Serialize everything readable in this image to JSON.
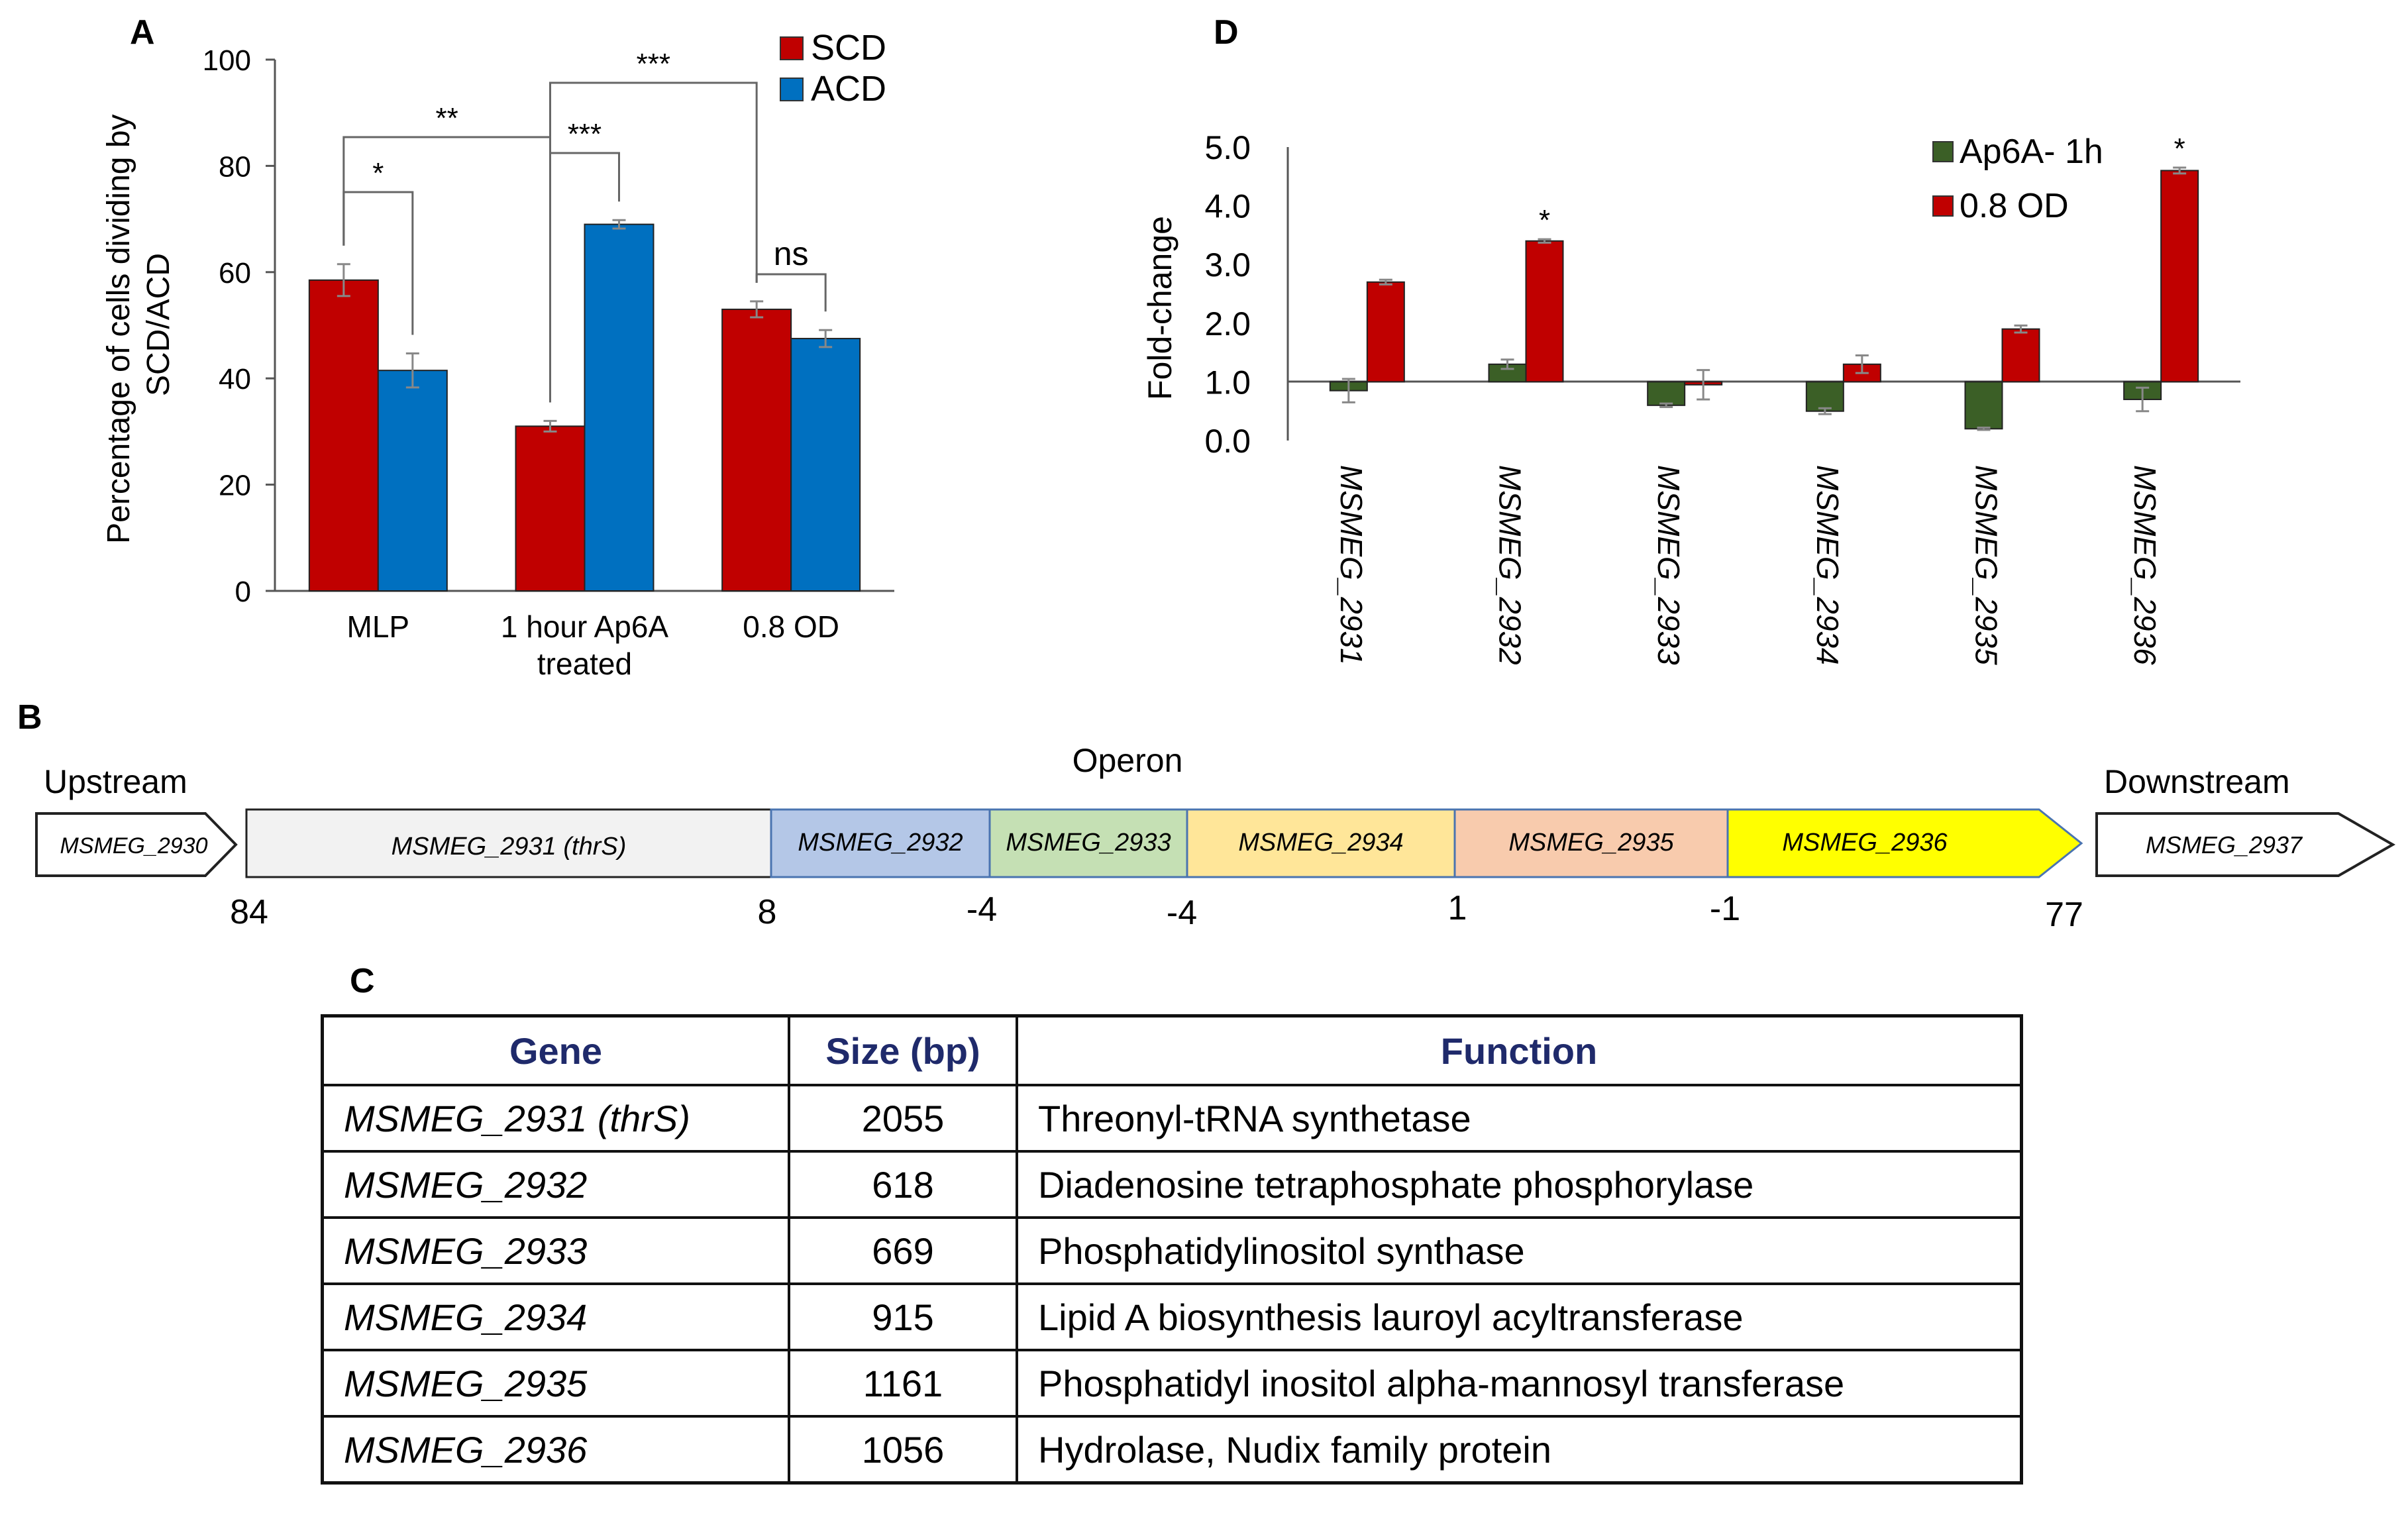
{
  "panels": {
    "a": "A",
    "b": "B",
    "c": "C",
    "d": "D"
  },
  "chart_data": [
    {
      "panel": "A",
      "type": "bar",
      "title": "",
      "xlabel": "",
      "ylabel": "Percentage of cells dividing by SCD/ACD",
      "ylabel_lines": [
        "Percentage of cells dividing by",
        "SCD/ACD"
      ],
      "ylim": [
        0,
        100
      ],
      "yticks": [
        0,
        20,
        40,
        60,
        80,
        100
      ],
      "categories": [
        "MLP",
        "1 hour Ap6A treated",
        "0.8 OD"
      ],
      "category_lines": [
        [
          "MLP"
        ],
        [
          "1 hour Ap6A",
          "treated"
        ],
        [
          "0.8 OD"
        ]
      ],
      "series": [
        {
          "name": "SCD",
          "color": "#c00000",
          "values": [
            58.5,
            31,
            53
          ],
          "errors": [
            3,
            1,
            1.5
          ]
        },
        {
          "name": "ACD",
          "color": "#0070c0",
          "values": [
            41.5,
            69,
            47.5
          ],
          "errors": [
            3.2,
            0.8,
            1.6
          ]
        }
      ],
      "legend_position": "top-right",
      "annotations": [
        {
          "label": "*",
          "between": [
            "MLP SCD",
            "MLP ACD"
          ]
        },
        {
          "label": "**",
          "between": [
            "MLP SCD",
            "1 hour Ap6A treated SCD"
          ]
        },
        {
          "label": "***",
          "between": [
            "1 hour Ap6A treated SCD",
            "1 hour Ap6A treated ACD"
          ]
        },
        {
          "label": "***",
          "between": [
            "1 hour Ap6A treated SCD",
            "0.8 OD SCD"
          ]
        },
        {
          "label": "ns",
          "between": [
            "0.8 OD SCD",
            "0.8 OD ACD"
          ]
        }
      ]
    },
    {
      "panel": "D",
      "type": "bar",
      "title": "",
      "xlabel": "",
      "ylabel": "Fold-change",
      "ylim": [
        0,
        5
      ],
      "baseline": 1,
      "yticks": [
        "0.0",
        "1.0",
        "2.0",
        "3.0",
        "4.0",
        "5.0"
      ],
      "categories": [
        "MSMEG_2931",
        "MSMEG_2932",
        "MSMEG_2933",
        "MSMEG_2934",
        "MSMEG_2935",
        "MSMEG_2936"
      ],
      "series": [
        {
          "name": "Ap6A- 1h",
          "color": "#3b5f26",
          "values": [
            0.85,
            1.3,
            0.6,
            0.5,
            0.2,
            0.7
          ],
          "errors": [
            0.2,
            0.08,
            0.03,
            0.05,
            0.02,
            0.2
          ]
        },
        {
          "name": "0.8 OD",
          "color": "#c00000",
          "values": [
            2.7,
            3.4,
            0.95,
            1.3,
            1.9,
            4.6
          ],
          "errors": [
            0.04,
            0.03,
            0.25,
            0.15,
            0.06,
            0.05
          ]
        }
      ],
      "legend_position": "top-right",
      "annotations": [
        {
          "label": "*",
          "category": "MSMEG_2932",
          "series": "0.8 OD"
        },
        {
          "label": "*",
          "category": "MSMEG_2936",
          "series": "0.8 OD"
        }
      ]
    }
  ],
  "operon_map": {
    "upstream_label": "Upstream",
    "operon_label": "Operon",
    "downstream_label": "Downstream",
    "upstream_gene": "MSMEG_2930",
    "downstream_gene": "MSMEG_2937",
    "genes": [
      {
        "label": "MSMEG_2931 (thrS)",
        "color": "#f2f2f2"
      },
      {
        "label": "MSMEG_2932",
        "color": "#b4c7e7"
      },
      {
        "label": "MSMEG_2933",
        "color": "#c5e0b4"
      },
      {
        "label": "MSMEG_2934",
        "color": "#ffe699"
      },
      {
        "label": "MSMEG_2935",
        "color": "#f8cbad"
      },
      {
        "label": "MSMEG_2936",
        "color": "#ffff00"
      }
    ],
    "intergenic_distances": [
      "84",
      "8",
      "-4",
      "-4",
      "1",
      "-1",
      "77"
    ]
  },
  "table": {
    "headers": {
      "gene": "Gene",
      "size": "Size (bp)",
      "function": "Function"
    },
    "rows": [
      {
        "gene": "MSMEG_2931 (thrS)",
        "size": "2055",
        "function": "Threonyl-tRNA synthetase"
      },
      {
        "gene": "MSMEG_2932",
        "size": "618",
        "function": "Diadenosine tetraphosphate phosphorylase"
      },
      {
        "gene": "MSMEG_2933",
        "size": "669",
        "function": "Phosphatidylinositol synthase"
      },
      {
        "gene": "MSMEG_2934",
        "size": "915",
        "function": "Lipid A biosynthesis lauroyl acyltransferase"
      },
      {
        "gene": "MSMEG_2935",
        "size": "1161",
        "function": "Phosphatidyl inositol alpha-mannosyl transferase"
      },
      {
        "gene": "MSMEG_2936",
        "size": "1056",
        "function": "Hydrolase, Nudix family protein"
      }
    ]
  }
}
